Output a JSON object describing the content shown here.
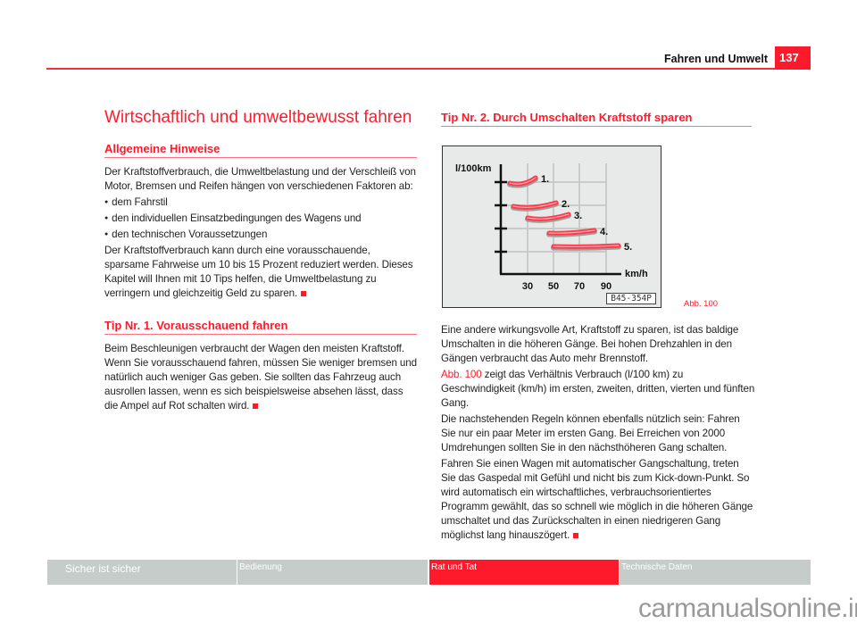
{
  "header": {
    "title": "Fahren und Umwelt",
    "page_number": "137"
  },
  "left": {
    "title": "Wirtschaftlich und umweltbewusst fahren",
    "section1": {
      "heading": "Allgemeine Hinweise",
      "intro": "Der Kraftstoffverbrauch, die Umweltbelastung und der Verschleiß von Motor, Bremsen und Reifen hängen von verschiedenen Faktoren ab:",
      "bullets": [
        "dem Fahrstil",
        "den individuellen Einsatzbedingungen des Wagens und",
        "den technischen Voraussetzungen"
      ],
      "outro": "Der Kraftstoffverbrauch kann durch eine vorausschauende, sparsame Fahrweise um 10 bis 15 Prozent reduziert werden. Dieses Kapitel will Ihnen mit 10 Tips helfen, die Umweltbelastung zu verringern und gleichzeitig Geld zu sparen."
    },
    "section2": {
      "heading": "Tip Nr. 1. Vorausschauend fahren",
      "text": "Beim Beschleunigen verbraucht der Wagen den meisten Kraftstoff. Wenn Sie vorausschauend fahren, müssen Sie weniger bremsen und natürlich auch weniger Gas geben. Sie sollten das Fahrzeug auch ausrollen lassen, wenn es sich beispielsweise absehen lässt, dass die Ampel auf Rot schalten wird."
    }
  },
  "right": {
    "heading": "Tip Nr. 2. Durch Umschalten Kraftstoff sparen",
    "figure": {
      "y_label": "l/100km",
      "x_label": "km/h",
      "x_ticks": [
        "30",
        "50",
        "70",
        "90"
      ],
      "gears": [
        "1.",
        "2.",
        "3.",
        "4.",
        "5."
      ],
      "code": "B45-354P",
      "caption": "Abb. 100",
      "curve_color": "#ff3a4a"
    },
    "p1": "Eine andere wirkungsvolle Art, Kraftstoff zu sparen, ist das baldige Umschalten in die höheren Gänge. Bei hohen Drehzahlen in den Gängen verbraucht das Auto mehr Brennstoff.",
    "p2_ref": "Abb. 100",
    "p2": " zeigt das Verhältnis Verbrauch (l/100 km) zu Geschwindigkeit (km/h) im ersten, zweiten, dritten, vierten und fünften Gang.",
    "p3": "Die nachstehenden Regeln können ebenfalls nützlich sein: Fahren Sie nur ein paar Meter im ersten Gang. Bei Erreichen von 2000 Umdrehungen sollten Sie in den nächsthöheren Gang schalten.",
    "p4": "Fahren Sie einen Wagen mit automatischer Gangschaltung, treten Sie das Gaspedal mit Gefühl und nicht bis zum Kick-down-Punkt. So wird automatisch ein wirtschaftliches, verbrauchsorientiertes Programm gewählt, das so schnell wie möglich in die höheren Gänge umschaltet und das Zurückschalten in einen niedrigeren Gang möglichst lang hinauszögert."
  },
  "footer": {
    "tabs": [
      "Sicher ist sicher",
      "Bedienung",
      "Rat und Tat",
      "Technische Daten"
    ],
    "active": "Rat und Tat"
  },
  "watermark": "carmanualsonline.info",
  "colors": {
    "accent": "#ff1a2b",
    "tab_bg": "#c5ccca"
  }
}
